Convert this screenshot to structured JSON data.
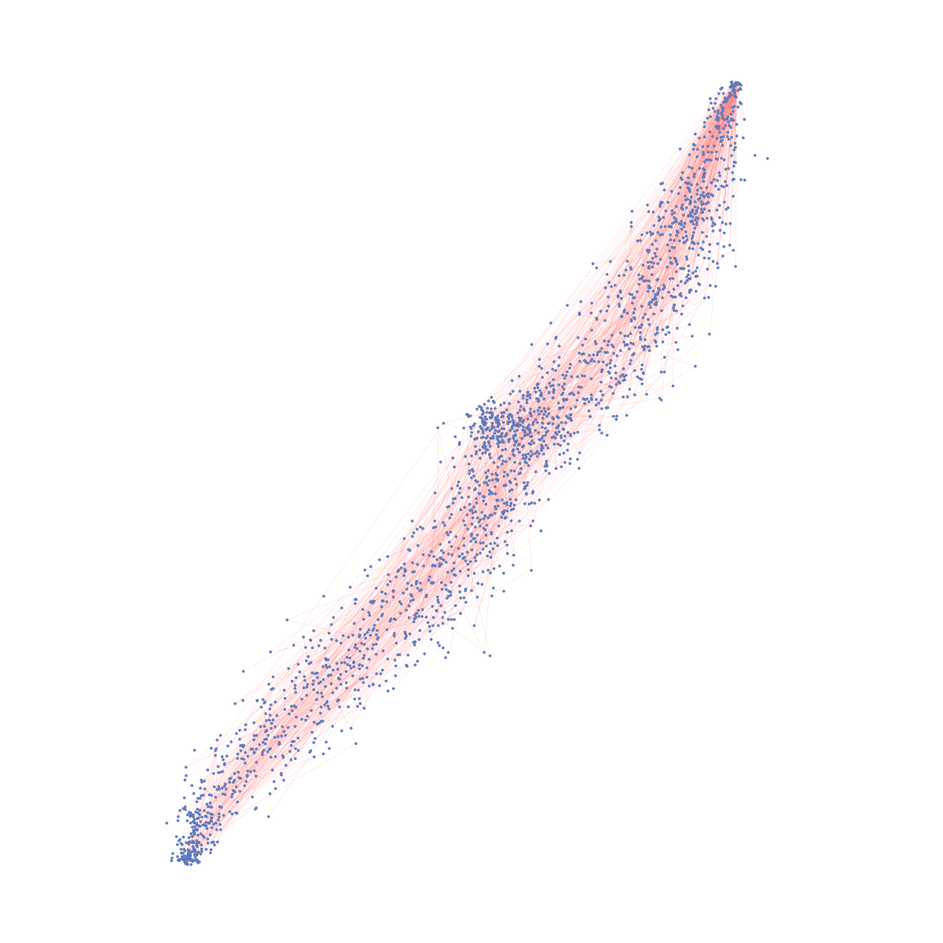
{
  "graph": {
    "layout": "force-directed",
    "shape": "elongated diagonal band, lower-left to upper-right",
    "node_count_estimate": 2000,
    "edge_count_estimate": 1500,
    "node_fill": "#6a86c8",
    "node_stroke": "#3e5ca6",
    "edge_color": "#ff8a8a",
    "background": "#ffffff"
  }
}
